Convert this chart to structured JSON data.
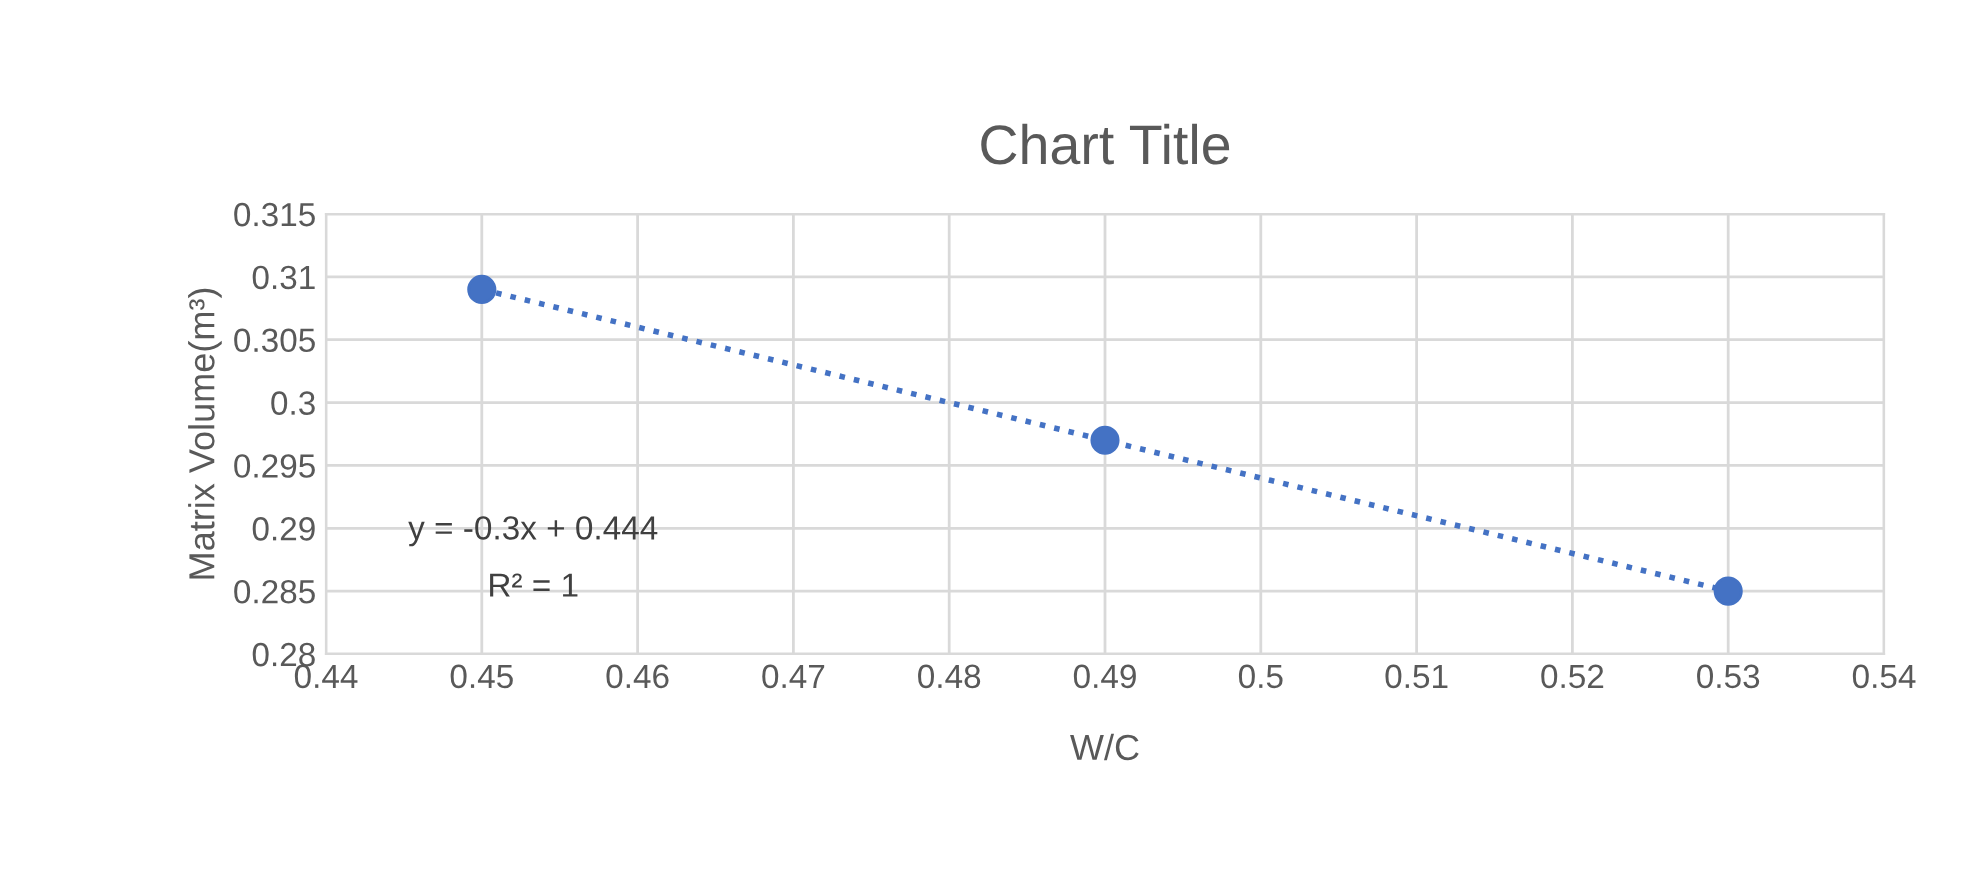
{
  "chart_data": {
    "type": "scatter",
    "title": "Chart Title",
    "xlabel": "W/C",
    "ylabel": "Matrix Volume(m³)",
    "series": [
      {
        "color": "#4472c4",
        "marker": "circle",
        "x": [
          0.45,
          0.49,
          0.53
        ],
        "values": [
          0.309,
          0.297,
          0.285
        ]
      },
      {
        "type": "line",
        "color": "#4472c4",
        "line_style": "dotted",
        "x": [
          0.45,
          0.53
        ],
        "values": [
          0.309,
          0.285
        ]
      }
    ],
    "xlim": [
      0.44,
      0.54
    ],
    "xticks": [
      0.44,
      0.45,
      0.46,
      0.47,
      0.48,
      0.49,
      0.5,
      0.51,
      0.52,
      0.53,
      0.54
    ],
    "ylim": [
      0.28,
      0.315
    ],
    "yticks": [
      0.28,
      0.285,
      0.29,
      0.295,
      0.3,
      0.305,
      0.31,
      0.315
    ],
    "grid": true,
    "annotations": [
      "y = -0.3x + 0.444",
      "R² = 1"
    ]
  }
}
